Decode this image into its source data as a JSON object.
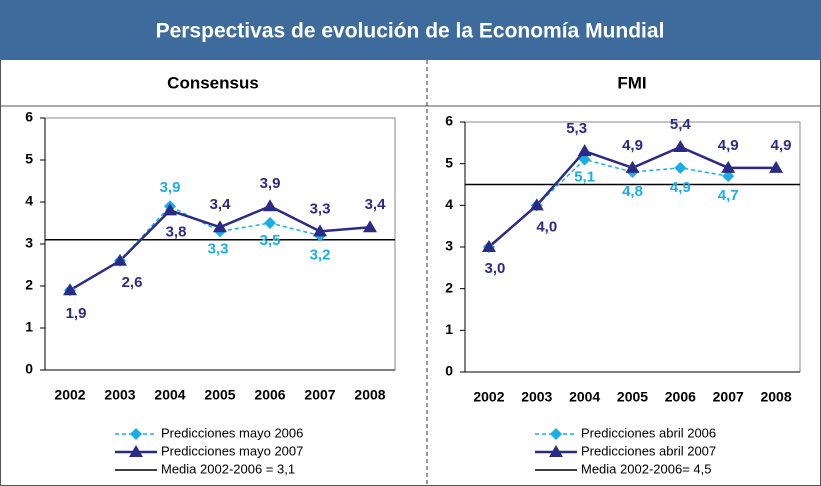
{
  "header": {
    "title": "Perspectivas de evolución de la Economía Mundial"
  },
  "chart_data": [
    {
      "type": "line",
      "title": "Consensus",
      "categories": [
        "2002",
        "2003",
        "2004",
        "2005",
        "2006",
        "2007",
        "2008"
      ],
      "ylim": [
        0,
        6
      ],
      "yticks": [
        0,
        1,
        2,
        3,
        4,
        5,
        6
      ],
      "series": [
        {
          "name": "Predicciones mayo 2006",
          "color": "#1aaee6",
          "dashed": true,
          "marker": "diamond",
          "values": [
            1.9,
            2.6,
            3.9,
            3.3,
            3.5,
            3.2,
            null
          ],
          "value_labels": [
            null,
            null,
            "3,9",
            "3,3",
            "3,5",
            "3,2",
            null
          ]
        },
        {
          "name": "Predicciones mayo 2007",
          "color": "#2b2b86",
          "dashed": false,
          "marker": "triangle",
          "values": [
            1.9,
            2.6,
            3.8,
            3.4,
            3.9,
            3.3,
            3.4
          ],
          "value_labels": [
            "1,9",
            "2,6",
            "3,8",
            "3,4",
            "3,9",
            "3,3",
            "3,4"
          ]
        }
      ],
      "mean": {
        "name": "Media 2002-2006 = 3,1",
        "value": 3.1,
        "color": "#000000"
      }
    },
    {
      "type": "line",
      "title": "FMI",
      "categories": [
        "2002",
        "2003",
        "2004",
        "2005",
        "2006",
        "2007",
        "2008"
      ],
      "ylim": [
        0,
        6
      ],
      "yticks": [
        0,
        1,
        2,
        3,
        4,
        5,
        6
      ],
      "series": [
        {
          "name": "Predicciones abril 2006",
          "color": "#1aaee6",
          "dashed": true,
          "marker": "diamond",
          "values": [
            3.0,
            4.0,
            5.1,
            4.8,
            4.9,
            4.7,
            null
          ],
          "value_labels": [
            null,
            null,
            "5,1",
            "4,8",
            "4,9",
            "4,7",
            null
          ]
        },
        {
          "name": "Predicciones abril 2007",
          "color": "#2b2b86",
          "dashed": false,
          "marker": "triangle",
          "values": [
            3.0,
            4.0,
            5.3,
            4.9,
            5.4,
            4.9,
            4.9
          ],
          "value_labels": [
            "3,0",
            "4,0",
            "5,3",
            "4,9",
            "5,4",
            "4,9",
            "4,9"
          ]
        }
      ],
      "mean": {
        "name": "Media 2002-2006= 4,5",
        "value": 4.5,
        "color": "#000000"
      }
    }
  ]
}
